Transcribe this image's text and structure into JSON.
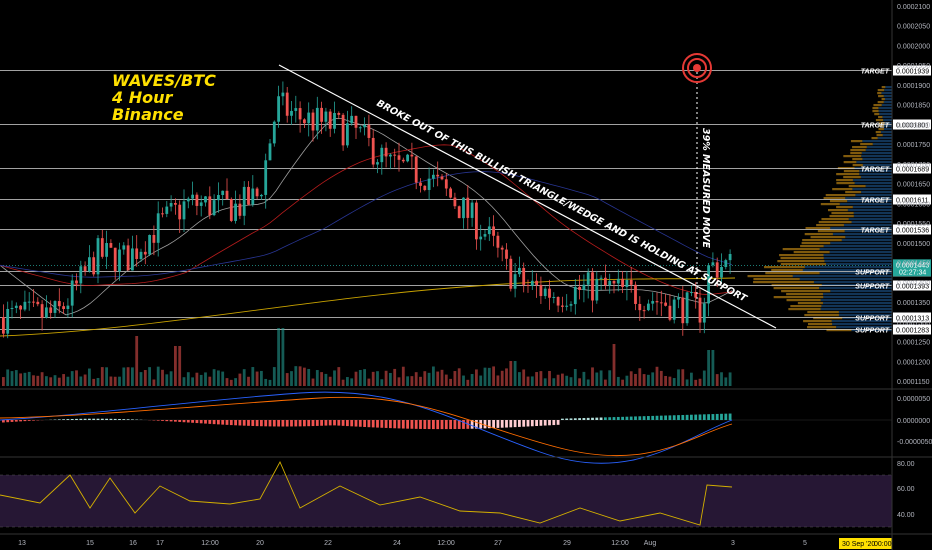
{
  "chart_data": {
    "type": "candlestick",
    "symbol_title": [
      "WAVES/BTC",
      "4 Hour",
      "Binance"
    ],
    "y_axis_ticks": [
      "0.0002100",
      "0.0002050",
      "0.0002000",
      "0.0001950",
      "0.0001900",
      "0.0001850",
      "0.0001800",
      "0.0001750",
      "0.0001700",
      "0.0001650",
      "0.0001600",
      "0.0001550",
      "0.0001500",
      "0.0001450",
      "0.0001400",
      "0.0001350",
      "0.0001300",
      "0.0001250",
      "0.0001200",
      "0.0001150"
    ],
    "x_axis_ticks": [
      "13",
      "15",
      "16",
      "17",
      "12:00",
      "20",
      "22",
      "24",
      "12:00",
      "27",
      "29",
      "12:00",
      "Aug",
      "3",
      "5"
    ],
    "date_stamp": "30 Sep '20",
    "time_stamp": "00:00",
    "price_levels": [
      {
        "label": "TARGET",
        "price": "0.0001939",
        "value": 0.0001939
      },
      {
        "label": "TARGET",
        "price": "0.0001801",
        "value": 0.0001801
      },
      {
        "label": "TARGET",
        "price": "0.0001689",
        "value": 0.0001689
      },
      {
        "label": "TARGET",
        "price": "0.0001611",
        "value": 0.0001611
      },
      {
        "label": "TARGET",
        "price": "0.0001536",
        "value": 0.0001536
      },
      {
        "label": "SUPPORT",
        "price": "0.0001429",
        "value": 0.0001429
      },
      {
        "label": "SUPPORT",
        "price": "0.0001393",
        "value": 0.0001393
      },
      {
        "label": "SUPPORT",
        "price": "0.0001313",
        "value": 0.0001313
      },
      {
        "label": "SUPPORT",
        "price": "0.0001283",
        "value": 0.0001283
      }
    ],
    "current_price": {
      "price": "0.0001443",
      "value": 0.0001443,
      "countdown": "02:27:34"
    },
    "annotations": {
      "trendline_text": "BROKE OUT OF THIS BULLISH TRIANGLE/WEDGE AND IS HOLDING AT SUPPORT",
      "measured_move_text": "39% MEASURED MOVE"
    },
    "macd_axis_ticks": [
      "0.0000050",
      "0.0000000",
      "-0.0000050"
    ],
    "rsi_axis_ticks": [
      "80.00",
      "60.00",
      "40.00"
    ],
    "ylim": [
      0.000115,
      0.00021
    ],
    "colors": {
      "up": "#26a69a",
      "down": "#ef5350",
      "background": "#000000",
      "title": "#ffe000",
      "target_ring": "#e53935",
      "rsi_line": "#d4b000",
      "rsi_band": "#2a1a3a"
    }
  }
}
